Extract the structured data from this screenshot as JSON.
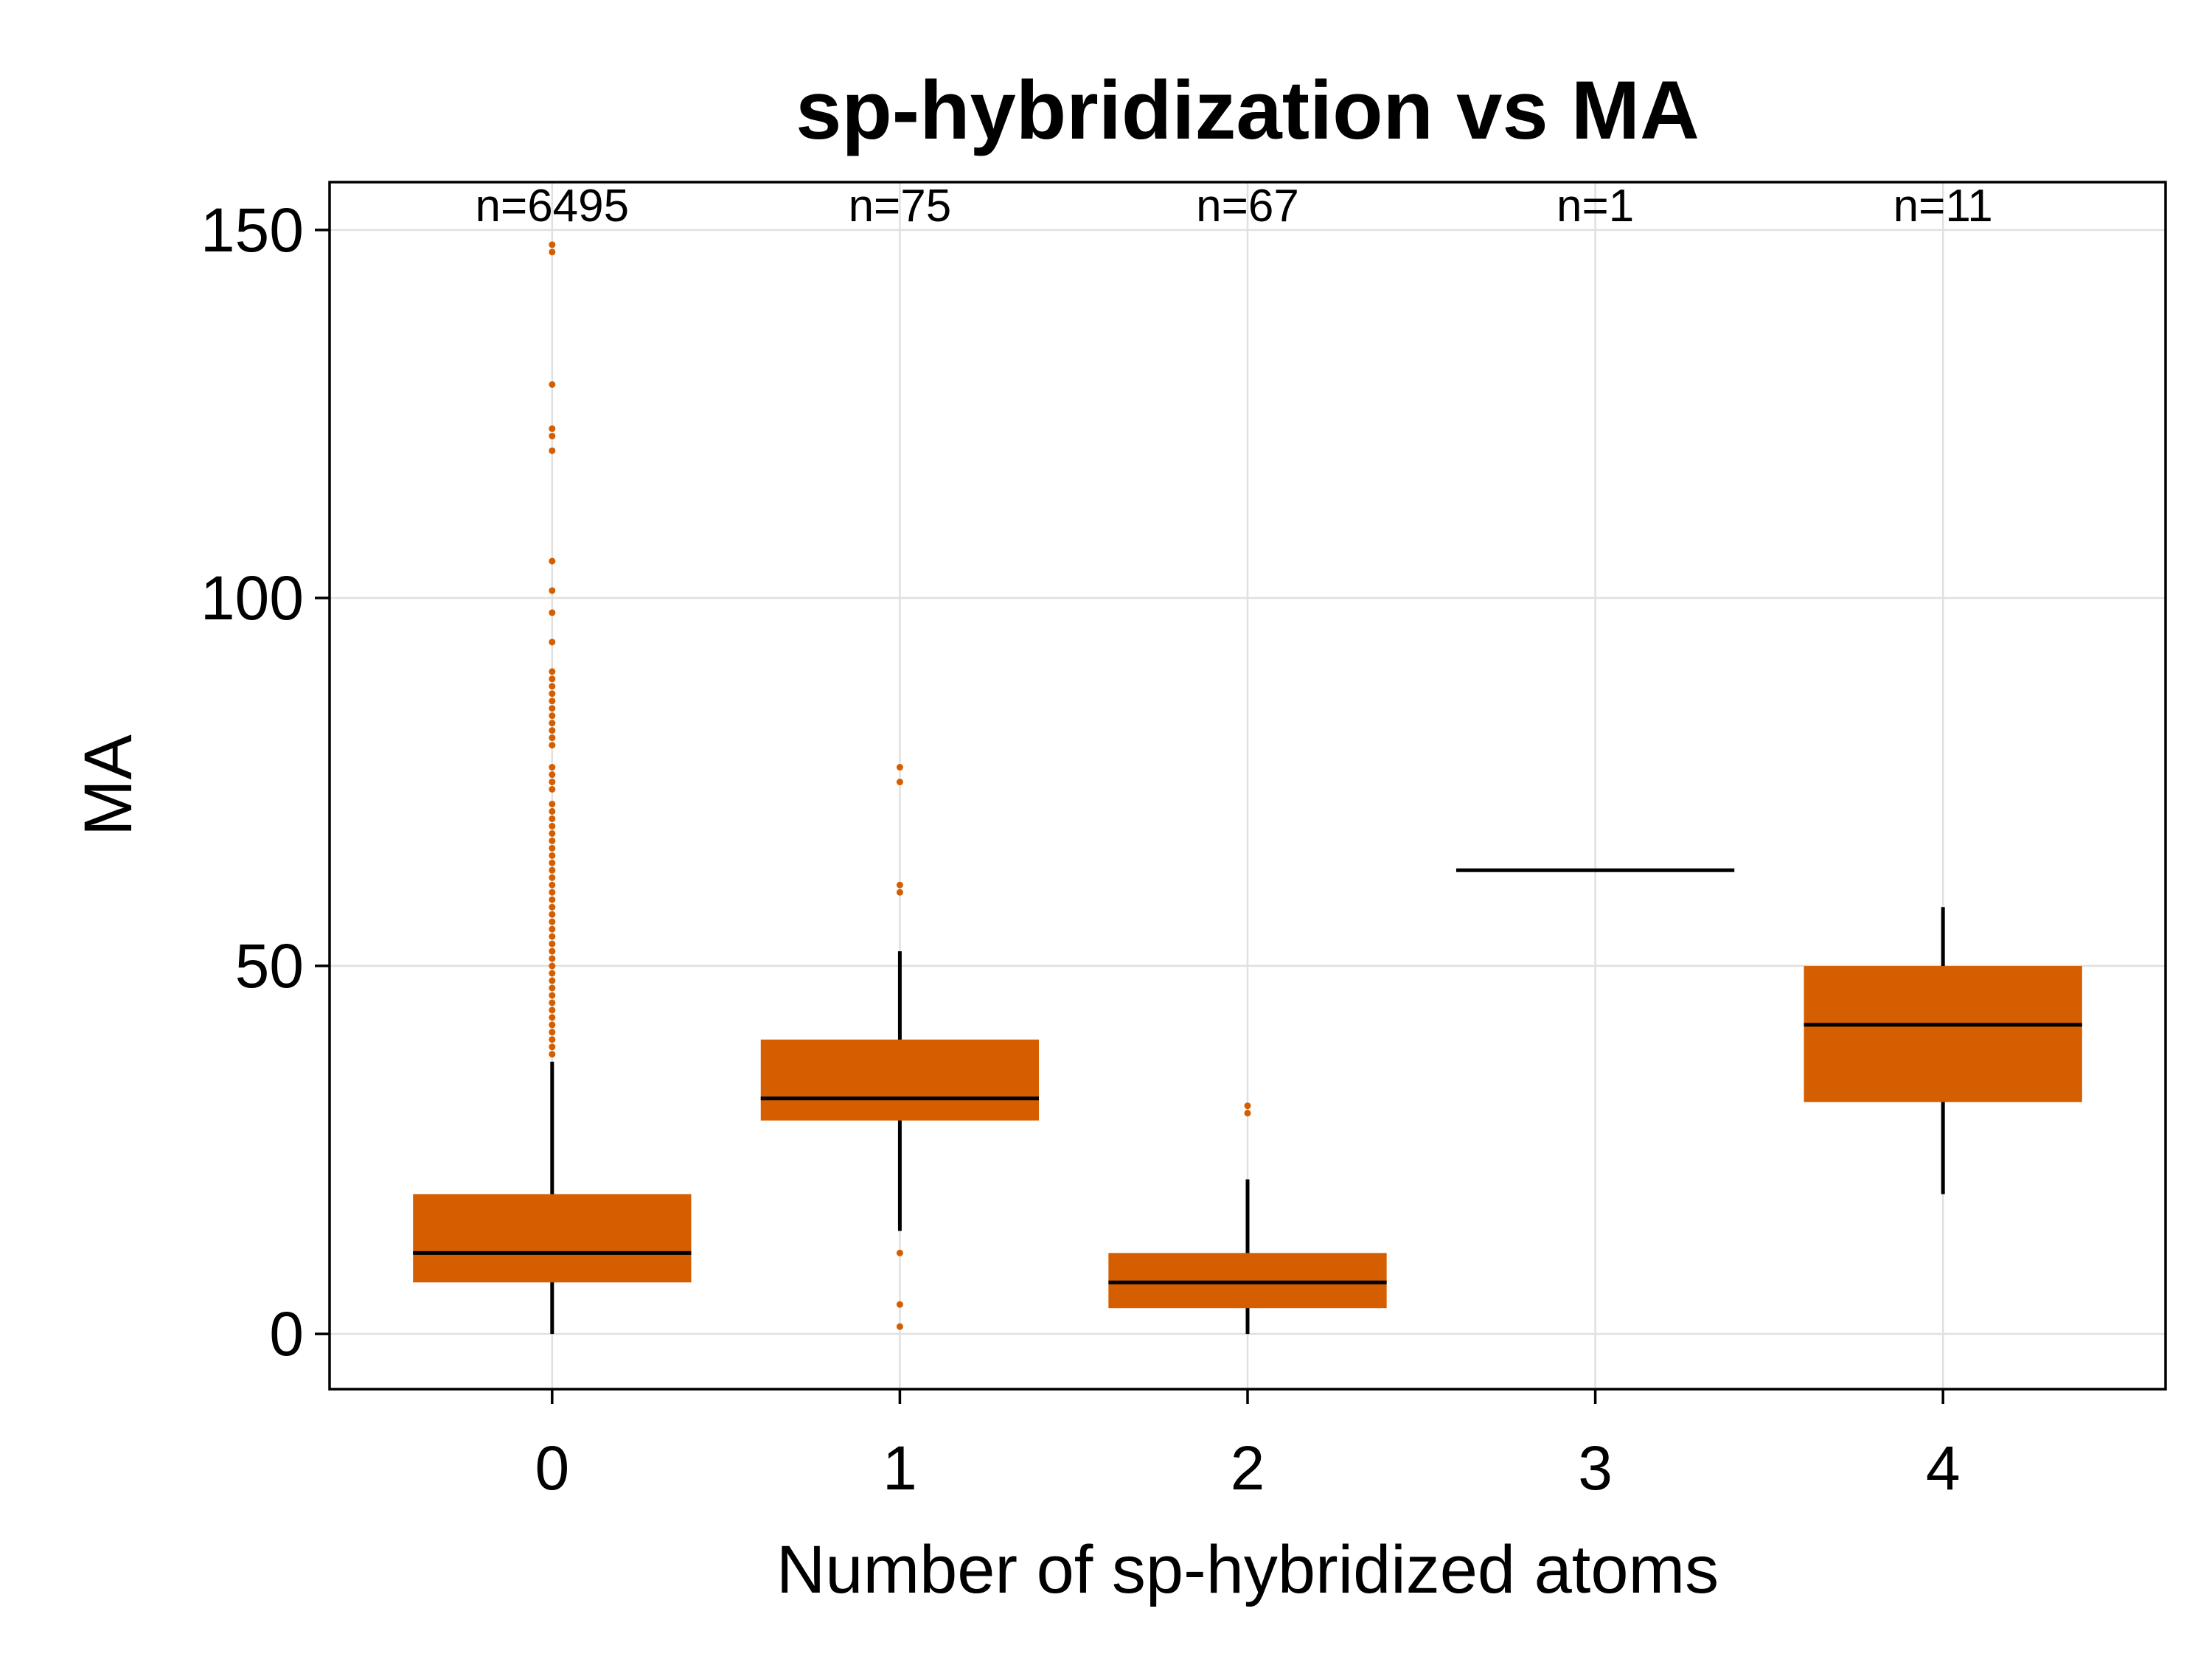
{
  "chart_data": {
    "type": "box",
    "title": "sp-hybridization vs MA",
    "xlabel": "Number of sp-hybridized atoms",
    "ylabel": "MA",
    "xlim": [
      -0.64,
      4.64
    ],
    "ylim": [
      -7.5,
      156.5
    ],
    "xticks": [
      "0",
      "1",
      "2",
      "3",
      "4"
    ],
    "yticks": [
      "0",
      "50",
      "100",
      "150"
    ],
    "grid": true,
    "colors": {
      "box": "#d55e00",
      "outlier": "#d55e00",
      "median": "#000000",
      "whisker": "#000000",
      "grid": "#e0e0e0"
    },
    "categories": [
      "0",
      "1",
      "2",
      "3",
      "4"
    ],
    "boxes": [
      {
        "x": 0,
        "n_label": "n=6495",
        "q1": 7,
        "median": 11,
        "q3": 19,
        "whisker_low": 0,
        "whisker_high": 37,
        "outliers": [
          38,
          39,
          40,
          41,
          42,
          43,
          44,
          45,
          46,
          47,
          48,
          49,
          50,
          51,
          52,
          53,
          54,
          55,
          56,
          57,
          58,
          59,
          60,
          61,
          62,
          63,
          64,
          65,
          66,
          67,
          68,
          69,
          70,
          71,
          72,
          74,
          75,
          76,
          77,
          80,
          81,
          82,
          83,
          84,
          85,
          86,
          87,
          88,
          89,
          90,
          94,
          98,
          101,
          105,
          120,
          122,
          123,
          129,
          147,
          148
        ]
      },
      {
        "x": 1,
        "n_label": "n=75",
        "q1": 29,
        "median": 32,
        "q3": 40,
        "whisker_low": 14,
        "whisker_high": 52,
        "outliers": [
          1,
          4,
          11,
          60,
          61,
          75,
          77
        ]
      },
      {
        "x": 2,
        "n_label": "n=67",
        "q1": 3.5,
        "median": 7,
        "q3": 11,
        "whisker_low": 0,
        "whisker_high": 21,
        "outliers": [
          30,
          31
        ]
      },
      {
        "x": 3,
        "n_label": "n=1",
        "q1": 63,
        "median": 63,
        "q3": 63,
        "whisker_low": 63,
        "whisker_high": 63,
        "outliers": []
      },
      {
        "x": 4,
        "n_label": "n=11",
        "q1": 31.5,
        "median": 42,
        "q3": 50,
        "whisker_low": 19,
        "whisker_high": 58,
        "outliers": []
      }
    ]
  }
}
